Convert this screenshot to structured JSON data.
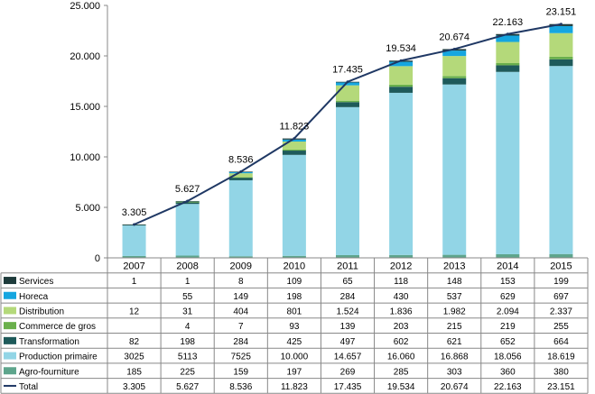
{
  "chart_data": {
    "type": "bar",
    "stacked": true,
    "categories": [
      "2007",
      "2008",
      "2009",
      "2010",
      "2011",
      "2012",
      "2013",
      "2014",
      "2015"
    ],
    "ylim": [
      0,
      25000
    ],
    "yticks": [
      0,
      5000,
      10000,
      15000,
      20000,
      25000
    ],
    "ytick_labels": [
      "0",
      "5.000",
      "10.000",
      "15.000",
      "20.000",
      "25.000"
    ],
    "grid": false,
    "legend": "data-table-left",
    "series": [
      {
        "name": "Agro-fourniture",
        "color": "#5ea58c",
        "values": [
          185,
          225,
          159,
          197,
          269,
          285,
          303,
          360,
          380
        ],
        "labels": [
          "185",
          "225",
          "159",
          "197",
          "269",
          "285",
          "303",
          "360",
          "380"
        ]
      },
      {
        "name": "Production primaire",
        "color": "#92d5e6",
        "values": [
          3025,
          5113,
          7525,
          10000,
          14657,
          16060,
          16868,
          18056,
          18619
        ],
        "labels": [
          "3025",
          "5113",
          "7525",
          "10.000",
          "14.657",
          "16.060",
          "16.868",
          "18.056",
          "18.619"
        ]
      },
      {
        "name": "Transformation",
        "color": "#1e5a5a",
        "values": [
          82,
          198,
          284,
          425,
          497,
          602,
          621,
          652,
          664
        ],
        "labels": [
          "82",
          "198",
          "284",
          "425",
          "497",
          "602",
          "621",
          "652",
          "664"
        ]
      },
      {
        "name": "Commerce de gros",
        "color": "#6ab04c",
        "values": [
          0,
          4,
          7,
          93,
          139,
          203,
          215,
          219,
          255
        ],
        "labels": [
          "",
          "4",
          "7",
          "93",
          "139",
          "203",
          "215",
          "219",
          "255"
        ]
      },
      {
        "name": "Distribution",
        "color": "#b4d97a",
        "values": [
          12,
          31,
          404,
          801,
          1524,
          1836,
          1982,
          2094,
          2337
        ],
        "labels": [
          "12",
          "31",
          "404",
          "801",
          "1.524",
          "1.836",
          "1.982",
          "2.094",
          "2.337"
        ]
      },
      {
        "name": "Horeca",
        "color": "#15a6e0",
        "values": [
          0,
          55,
          149,
          198,
          284,
          430,
          537,
          629,
          697
        ],
        "labels": [
          "",
          "55",
          "149",
          "198",
          "284",
          "430",
          "537",
          "629",
          "697"
        ]
      },
      {
        "name": "Services",
        "color": "#1e3b3b",
        "values": [
          1,
          1,
          8,
          109,
          65,
          118,
          148,
          153,
          199
        ],
        "labels": [
          "1",
          "1",
          "8",
          "109",
          "65",
          "118",
          "148",
          "153",
          "199"
        ]
      }
    ],
    "total": {
      "name": "Total",
      "type": "line",
      "color": "#1f3864",
      "values": [
        3305,
        5627,
        8536,
        11823,
        17435,
        19534,
        20674,
        22163,
        23151
      ],
      "labels": [
        "3.305",
        "5.627",
        "8.536",
        "11.823",
        "17.435",
        "19.534",
        "20.674",
        "22.163",
        "23.151"
      ]
    },
    "table_order": [
      "Services",
      "Horeca",
      "Distribution",
      "Commerce de gros",
      "Transformation",
      "Production primaire",
      "Agro-fourniture",
      "Total"
    ]
  }
}
